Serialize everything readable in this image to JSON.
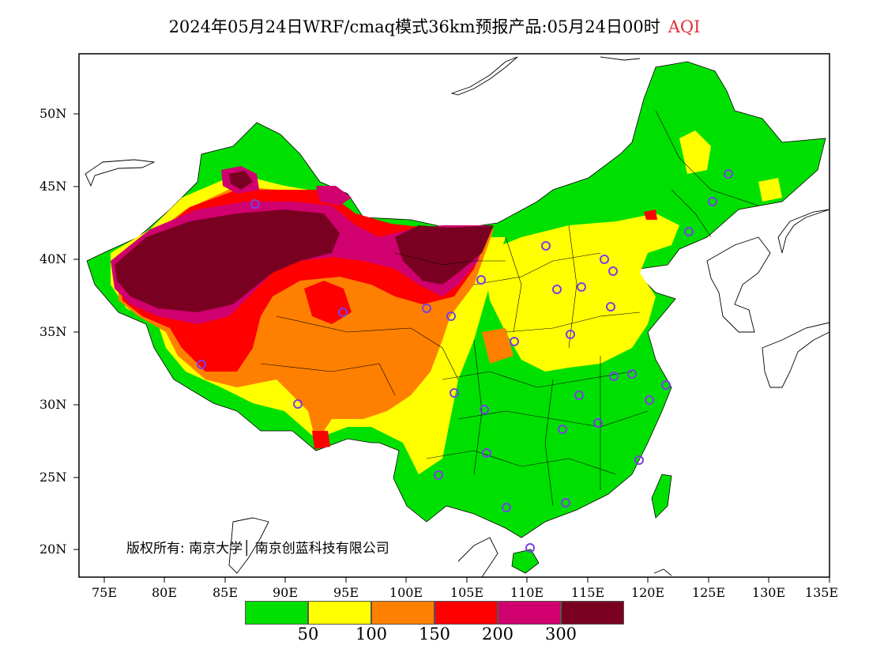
{
  "title": {
    "main": "2024年05月24日WRF/cmaq模式36km预报产品:05月24日00时",
    "variable": "AQI"
  },
  "axes": {
    "lat_ticks": [
      "50N",
      "45N",
      "40N",
      "35N",
      "30N",
      "25N",
      "20N"
    ],
    "lon_ticks": [
      "75E",
      "80E",
      "85E",
      "90E",
      "95E",
      "100E",
      "105E",
      "110E",
      "115E",
      "120E",
      "125E",
      "130E",
      "135E"
    ]
  },
  "copyright": "版权所有: 南京大学│ 南京创蓝科技有限公司",
  "legend": {
    "colors": [
      "#00e000",
      "#ffff00",
      "#ff8000",
      "#ff0000",
      "#d0006f",
      "#7a0022"
    ],
    "labels": [
      "50",
      "100",
      "150",
      "200",
      "300"
    ]
  },
  "colors": {
    "green": "#00e000",
    "yellow": "#ffff00",
    "orange": "#ff8000",
    "red": "#ff0000",
    "magenta": "#d0006f",
    "maroon": "#7a0022",
    "station_marker": "#7b3fe4"
  },
  "icons": [
    "station-circle-icon"
  ]
}
